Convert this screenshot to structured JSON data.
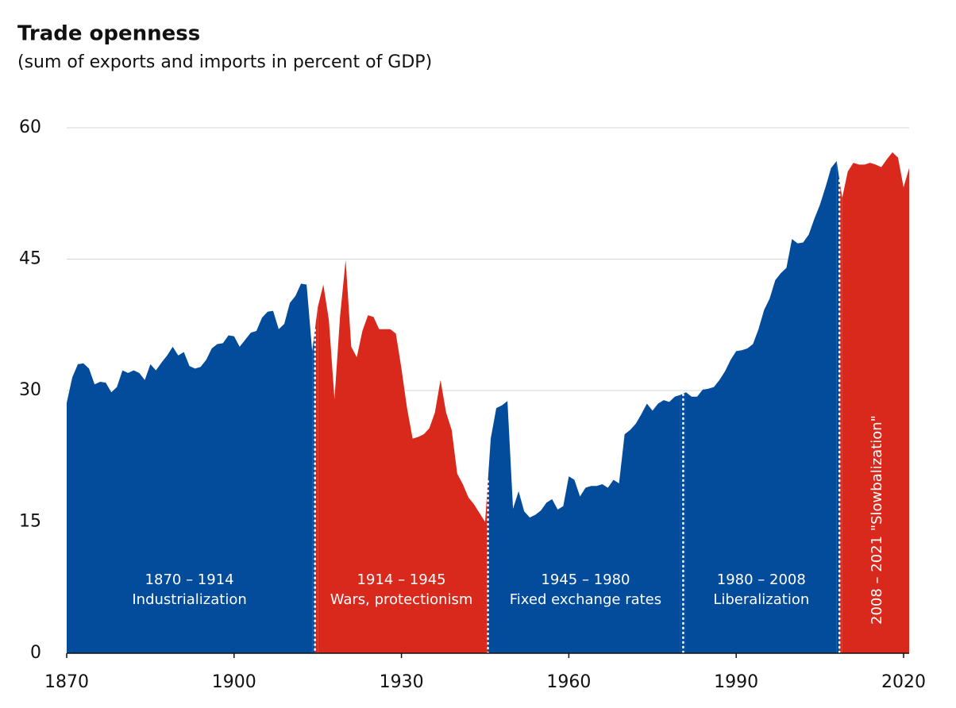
{
  "chart_data": {
    "type": "area",
    "title": "Trade openness",
    "subtitle": "(sum of exports and imports in percent of GDP)",
    "xlim": [
      1870,
      2021
    ],
    "xticks": [
      1870,
      1900,
      1930,
      1960,
      1990,
      2020
    ],
    "ylim": [
      0,
      60
    ],
    "yticks": [
      0,
      15,
      30,
      45,
      60
    ],
    "grid": true,
    "series": [
      {
        "period": "1870 – 1914",
        "name": "Industrialization",
        "color": "#034b9b",
        "x": [
          1870,
          1871,
          1872,
          1873,
          1874,
          1875,
          1876,
          1877,
          1878,
          1879,
          1880,
          1881,
          1882,
          1883,
          1884,
          1885,
          1886,
          1887,
          1888,
          1889,
          1890,
          1891,
          1892,
          1893,
          1894,
          1895,
          1896,
          1897,
          1898,
          1899,
          1900,
          1901,
          1902,
          1903,
          1904,
          1905,
          1906,
          1907,
          1908,
          1909,
          1910,
          1911,
          1912,
          1913,
          1914
        ],
        "values": [
          28.6,
          31.5,
          33.0,
          33.1,
          32.5,
          30.7,
          31.0,
          30.9,
          29.8,
          30.4,
          32.3,
          32.0,
          32.3,
          32.0,
          31.2,
          33.0,
          32.3,
          33.2,
          34.0,
          35.0,
          34.0,
          34.4,
          32.8,
          32.5,
          32.7,
          33.5,
          34.8,
          35.3,
          35.4,
          36.3,
          36.2,
          35.0,
          35.8,
          36.6,
          36.8,
          38.3,
          39.0,
          39.1,
          37.0,
          37.6,
          40.0,
          40.8,
          42.2,
          42.1,
          34.5
        ]
      },
      {
        "period": "1914 – 1945",
        "name": "Wars, protectionism",
        "color": "#d9291c",
        "x": [
          1915,
          1916,
          1917,
          1918,
          1919,
          1920,
          1921,
          1922,
          1923,
          1924,
          1925,
          1926,
          1927,
          1928,
          1929,
          1930,
          1931,
          1932,
          1933,
          1934,
          1935,
          1936,
          1937,
          1938,
          1939,
          1940,
          1941,
          1942,
          1943,
          1944,
          1945
        ],
        "values": [
          39.5,
          42.1,
          38.0,
          29.0,
          38.5,
          44.9,
          35.0,
          33.8,
          36.8,
          38.6,
          38.4,
          37.0,
          37.0,
          37.0,
          36.5,
          32.5,
          28.0,
          24.5,
          24.7,
          25.0,
          25.7,
          27.5,
          31.2,
          27.5,
          25.5,
          20.5,
          19.3,
          17.8,
          17.0,
          16.0,
          15.0
        ]
      },
      {
        "period": "1945 – 1980",
        "name": "Fixed exchange rates",
        "color": "#034b9b",
        "x": [
          1946,
          1947,
          1948,
          1949,
          1950,
          1951,
          1952,
          1953,
          1954,
          1955,
          1956,
          1957,
          1958,
          1959,
          1960,
          1961,
          1962,
          1963,
          1964,
          1965,
          1966,
          1967,
          1968,
          1969,
          1970,
          1971,
          1972,
          1973,
          1974,
          1975,
          1976,
          1977,
          1978,
          1979,
          1980
        ],
        "values": [
          24.5,
          28.0,
          28.3,
          28.8,
          16.5,
          18.5,
          16.2,
          15.5,
          15.8,
          16.3,
          17.2,
          17.6,
          16.4,
          16.8,
          20.2,
          19.8,
          17.9,
          18.9,
          19.1,
          19.1,
          19.3,
          18.9,
          19.8,
          19.4,
          25.0,
          25.5,
          26.2,
          27.3,
          28.5,
          27.7,
          28.5,
          28.9,
          28.7,
          29.3,
          29.5
        ]
      },
      {
        "period": "1980 – 2008",
        "name": "Liberalization",
        "color": "#034b9b",
        "x": [
          1981,
          1982,
          1983,
          1984,
          1985,
          1986,
          1987,
          1988,
          1989,
          1990,
          1991,
          1992,
          1993,
          1994,
          1995,
          1996,
          1997,
          1998,
          1999,
          2000,
          2001,
          2002,
          2003,
          2004,
          2005,
          2006,
          2007,
          2008
        ],
        "values": [
          29.8,
          29.3,
          29.3,
          30.1,
          30.2,
          30.4,
          31.2,
          32.2,
          33.5,
          34.5,
          34.6,
          34.8,
          35.3,
          37.0,
          39.2,
          40.5,
          42.6,
          43.4,
          44.0,
          47.3,
          46.8,
          46.9,
          47.8,
          49.6,
          51.2,
          53.2,
          55.4,
          56.2
        ]
      },
      {
        "period": "2008 – 2021",
        "name": "\"Slowbalization\"",
        "color": "#d9291c",
        "vertical": true,
        "x": [
          2009,
          2010,
          2011,
          2012,
          2013,
          2014,
          2015,
          2016,
          2017,
          2018,
          2019,
          2020,
          2021
        ],
        "values": [
          52.0,
          55.0,
          56.0,
          55.8,
          55.8,
          56.0,
          55.8,
          55.5,
          56.4,
          57.2,
          56.6,
          53.2,
          55.4
        ]
      }
    ]
  }
}
